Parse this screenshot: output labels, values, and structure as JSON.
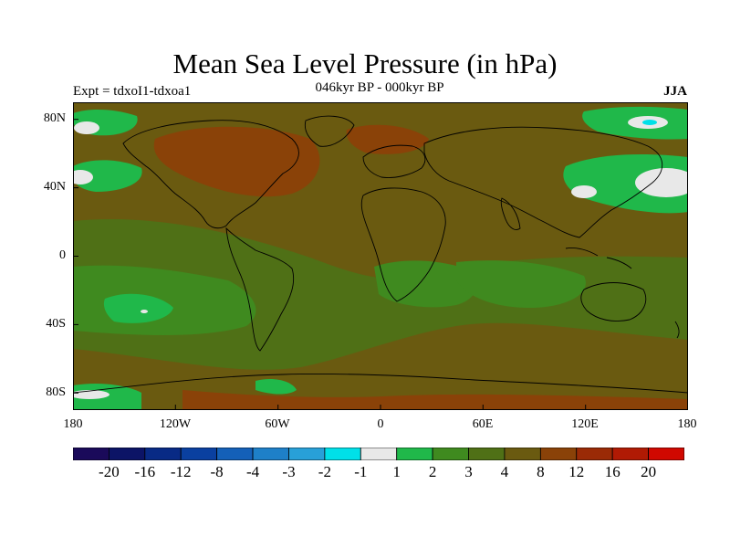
{
  "title": "Mean Sea Level Pressure (in hPa)",
  "experiment_label": "Expt = tdxoI1-tdxoa1",
  "period_label": "046kyr BP - 000kyr BP",
  "season_label": "JJA",
  "lat_ticks": [
    "80N",
    "40N",
    "0",
    "40S",
    "80S"
  ],
  "lon_ticks": [
    "180",
    "120W",
    "60W",
    "0",
    "60E",
    "120E",
    "180"
  ],
  "colorbar": {
    "colors": [
      "#1a0a5a",
      "#0c1466",
      "#082a85",
      "#0a40a0",
      "#1460b8",
      "#1e80c8",
      "#28a0d8",
      "#00e0e8",
      "#e8e8e8",
      "#20b84a",
      "#3f8a1f",
      "#4f7016",
      "#6a5a10",
      "#8a4208",
      "#9a2a06",
      "#b01a04",
      "#d00800"
    ],
    "labels": [
      "-20",
      "-16",
      "-12",
      "-8",
      "-4",
      "-3",
      "-2",
      "-1",
      "1",
      "2",
      "3",
      "4",
      "8",
      "12",
      "16",
      "20"
    ]
  },
  "map_data": {
    "lon_range": [
      -180,
      180
    ],
    "lat_range": [
      -90,
      90
    ],
    "regions": [
      {
        "name": "background",
        "value_class": "4-8",
        "color": "#6a5a10"
      },
      {
        "name": "north-america-high",
        "value_class": "8-12",
        "color": "#8a4208"
      },
      {
        "name": "tropical-band",
        "value_class": "3-4",
        "color": "#4f7016"
      },
      {
        "name": "south-pacific-low",
        "value_class": "1-2",
        "color": "#20b84a"
      },
      {
        "name": "north-pacific-low",
        "value_class": "1-2",
        "color": "#20b84a"
      },
      {
        "name": "asia-east-low",
        "value_class": "-1-1",
        "color": "#e8e8e8"
      },
      {
        "name": "arctic-low",
        "value_class": "-1-1",
        "color": "#e8e8e8"
      }
    ]
  }
}
